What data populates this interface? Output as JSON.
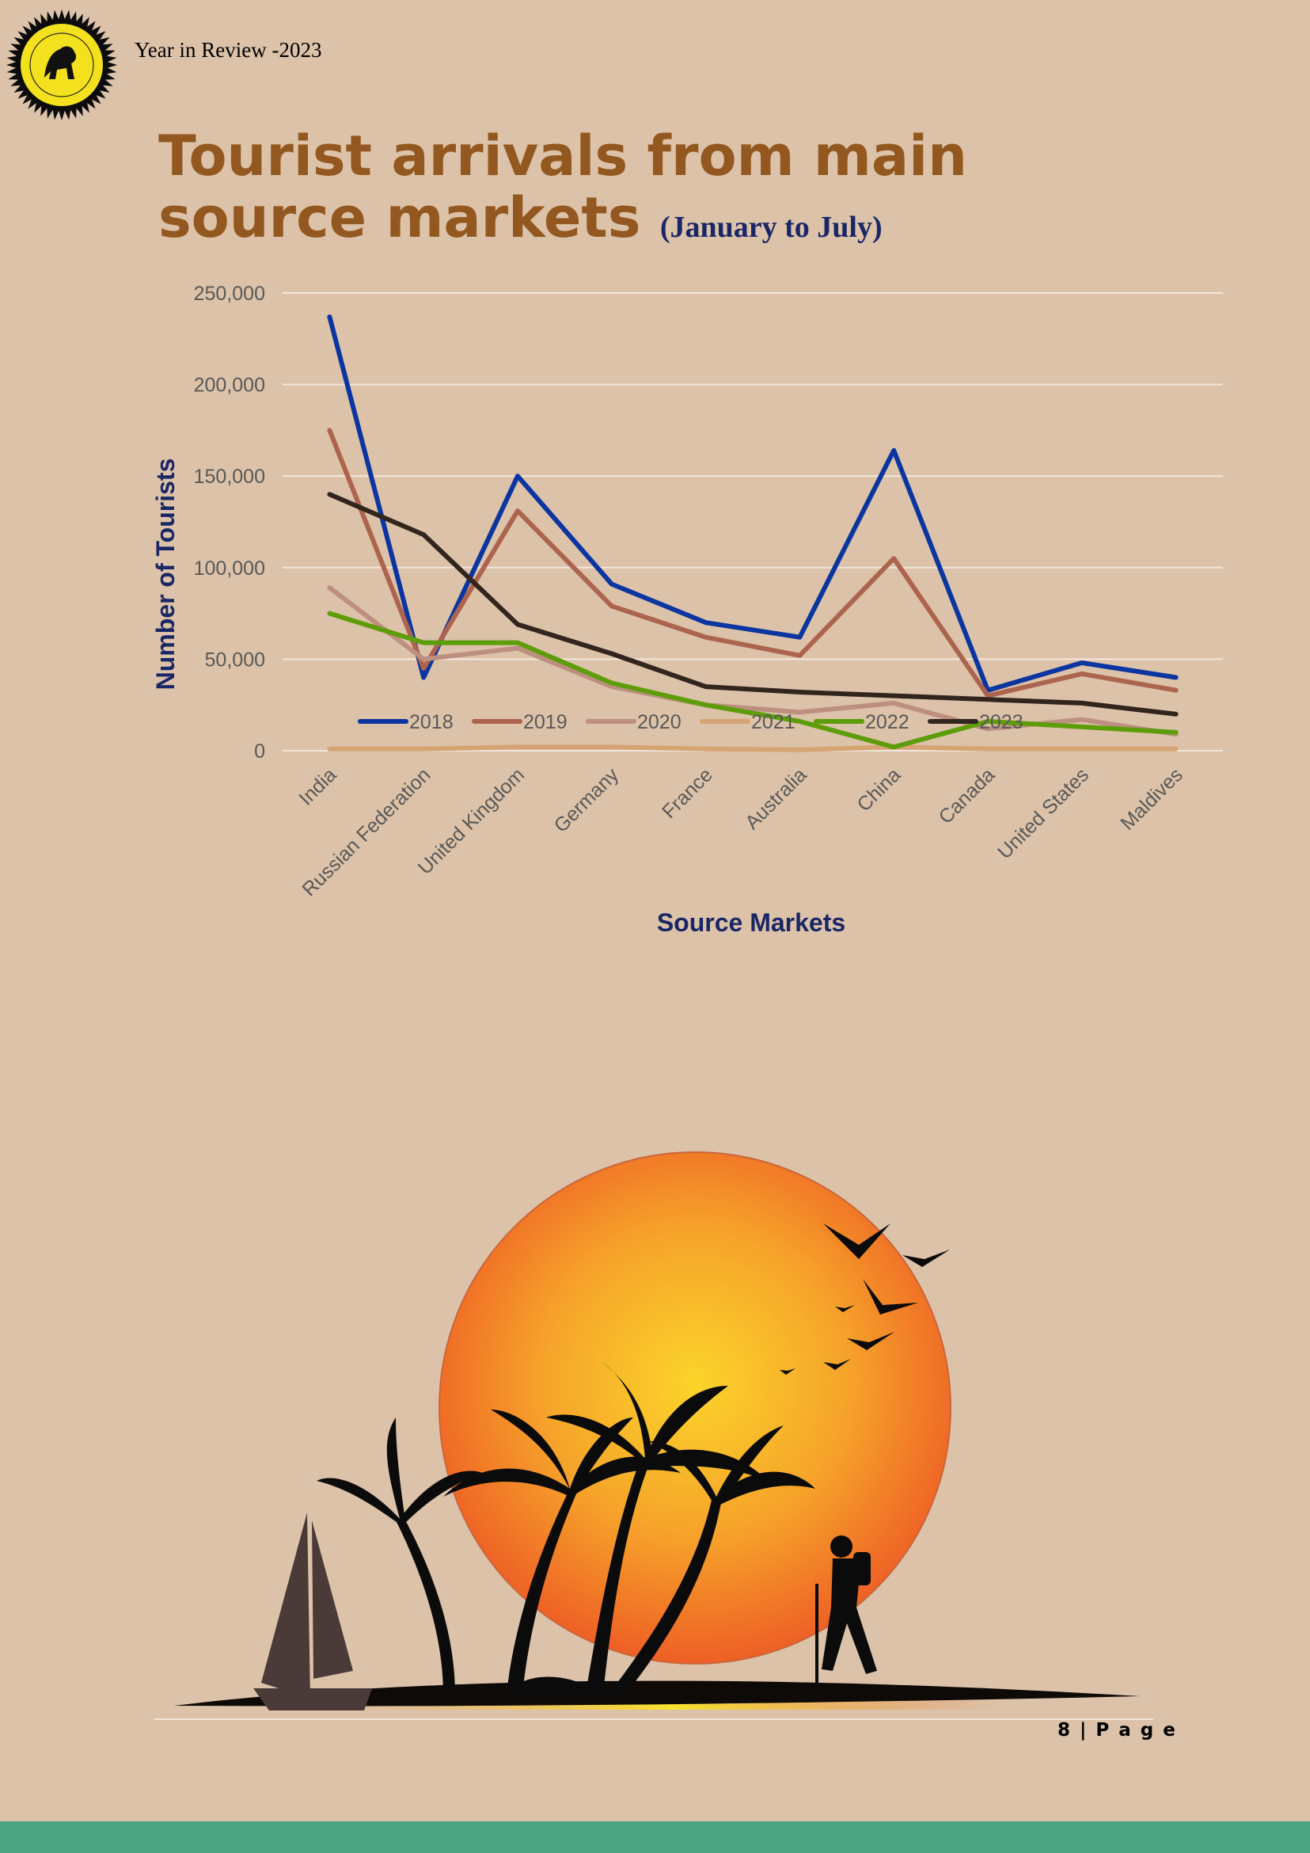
{
  "header": {
    "text": "Year in Review -2023"
  },
  "title": {
    "main": "Tourist arrivals from main source markets",
    "sub": "(January to July)"
  },
  "footer": {
    "page_label": "8 | P a g e"
  },
  "chart_data": {
    "type": "line",
    "ylabel": "Number of Tourists",
    "xlabel": "Source Markets",
    "ylim": [
      0,
      250000
    ],
    "yticks": [
      0,
      50000,
      100000,
      150000,
      200000,
      250000
    ],
    "ytick_labels": [
      "0",
      "50,000",
      "100,000",
      "150,000",
      "200,000",
      "250,000"
    ],
    "grid": true,
    "legend_position": "bottom",
    "categories": [
      "India",
      "Russian Federation",
      "United Kingdom",
      "Germany",
      "France",
      "Australia",
      "China",
      "Canada",
      "United States",
      "Maldives"
    ],
    "series": [
      {
        "name": "2018",
        "color": "#0b35a0",
        "values": [
          237000,
          40000,
          150000,
          91000,
          70000,
          62000,
          164000,
          33000,
          48000,
          40000
        ]
      },
      {
        "name": "2019",
        "color": "#ad644e",
        "values": [
          175000,
          45000,
          131000,
          79000,
          62000,
          52000,
          105000,
          30000,
          42000,
          33000
        ]
      },
      {
        "name": "2020",
        "color": "#bc8f80",
        "values": [
          89000,
          50000,
          56000,
          35000,
          25000,
          21000,
          26000,
          12000,
          17000,
          9000
        ]
      },
      {
        "name": "2021",
        "color": "#d6a473",
        "values": [
          1000,
          1000,
          2000,
          2000,
          1000,
          500,
          2000,
          1000,
          1000,
          1000
        ]
      },
      {
        "name": "2022",
        "color": "#5e9d0a",
        "values": [
          75000,
          59000,
          59000,
          37000,
          25000,
          16000,
          2000,
          16000,
          13000,
          10000
        ]
      },
      {
        "name": "2023",
        "color": "#32251e",
        "values": [
          140000,
          118000,
          69000,
          53000,
          35000,
          32000,
          30000,
          28000,
          26000,
          20000
        ]
      }
    ]
  }
}
